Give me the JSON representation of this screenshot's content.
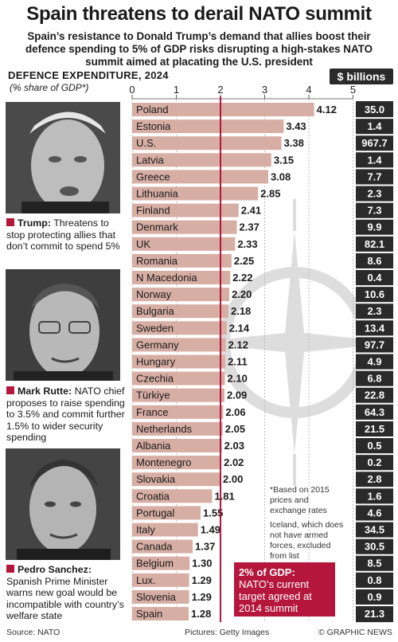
{
  "header": {
    "title": "Spain threatens to derail NATO summit",
    "subtitle": "Spain’s resistance to Donald Trump’s demand that allies boost their defence spending to 5% of GDP risks disrupting a high-stakes NATO summit aimed at placating the U.S. president"
  },
  "chart_heading": "DEFENCE EXPENDITURE, 2024",
  "chart_unit": "(% share of GDP*)",
  "billions_header": "$ billions",
  "people": [
    {
      "name": "Trump:",
      "text": " Threatens to stop protecting allies that don’t commit to spend 5%"
    },
    {
      "name": "Mark Rutte:",
      "text": " NATO chief proposes to raise spending to 3.5% and commit further 1.5% to wider security spending"
    },
    {
      "name": "Pedro Sanchez:",
      "text": " Spanish Prime Minister warns new goal would be incompatible with country’s welfare state"
    }
  ],
  "footnote": {
    "line1": "*Based on 2015",
    "line2": "prices and",
    "line3": "exchange rates",
    "line4": "Iceland, which does",
    "line5": "not have armed",
    "line6": "forces, excluded",
    "line7": "from list"
  },
  "callout": {
    "bold": "2% of GDP:",
    "text": "NATO’s current target agreed at 2014 summit"
  },
  "footer": {
    "source": "Source: NATO",
    "pictures": "Pictures: Getty Images",
    "credit": "© GRAPHIC NEWS"
  },
  "colors": {
    "bar": "#d7aea4",
    "target_line": "#b5173c",
    "accent": "#b5173c",
    "billions_box": "#2a2a2a"
  },
  "chart_data": {
    "type": "bar",
    "orientation": "horizontal",
    "xlim": [
      0,
      5
    ],
    "xticks": [
      0,
      1,
      2,
      3,
      4,
      5
    ],
    "reference_line": 2,
    "grid": true,
    "categories": [
      "Poland",
      "Estonia",
      "U.S.",
      "Latvia",
      "Greece",
      "Lithuania",
      "Finland",
      "Denmark",
      "UK",
      "Romania",
      "N Macedonia",
      "Norway",
      "Bulgaria",
      "Sweden",
      "Germany",
      "Hungary",
      "Czechia",
      "Türkiye",
      "France",
      "Netherlands",
      "Albania",
      "Montenegro",
      "Slovakia",
      "Croatia",
      "Portugal",
      "Italy",
      "Canada",
      "Belgium",
      "Lux.",
      "Slovenia",
      "Spain"
    ],
    "values": [
      4.12,
      3.43,
      3.38,
      3.15,
      3.08,
      2.85,
      2.41,
      2.37,
      2.33,
      2.25,
      2.22,
      2.2,
      2.18,
      2.14,
      2.12,
      2.11,
      2.1,
      2.09,
      2.06,
      2.05,
      2.03,
      2.02,
      2.0,
      1.81,
      1.55,
      1.49,
      1.37,
      1.3,
      1.29,
      1.29,
      1.28
    ],
    "value_labels": [
      "4.12",
      "3.43",
      "3.38",
      "3.15",
      "3.08",
      "2.85",
      "2.41",
      "2.37",
      "2.33",
      "2.25",
      "2.22",
      "2.20",
      "2.18",
      "2.14",
      "2.12",
      "2.11",
      "2.10",
      "2.09",
      "2.06",
      "2.05",
      "2.03",
      "2.02",
      "2.00",
      "1.81",
      "1.55",
      "1.49",
      "1.37",
      "1.30",
      "1.29",
      "1.29",
      "1.28"
    ],
    "billions": [
      "35.0",
      "1.4",
      "967.7",
      "1.4",
      "7.7",
      "2.3",
      "7.3",
      "9.9",
      "82.1",
      "8.6",
      "0.4",
      "10.6",
      "2.3",
      "13.4",
      "97.7",
      "4.9",
      "6.8",
      "22.8",
      "64.3",
      "21.5",
      "0.5",
      "0.2",
      "2.8",
      "1.6",
      "4.6",
      "34.5",
      "30.5",
      "8.5",
      "0.8",
      "0.9",
      "21.3"
    ]
  }
}
